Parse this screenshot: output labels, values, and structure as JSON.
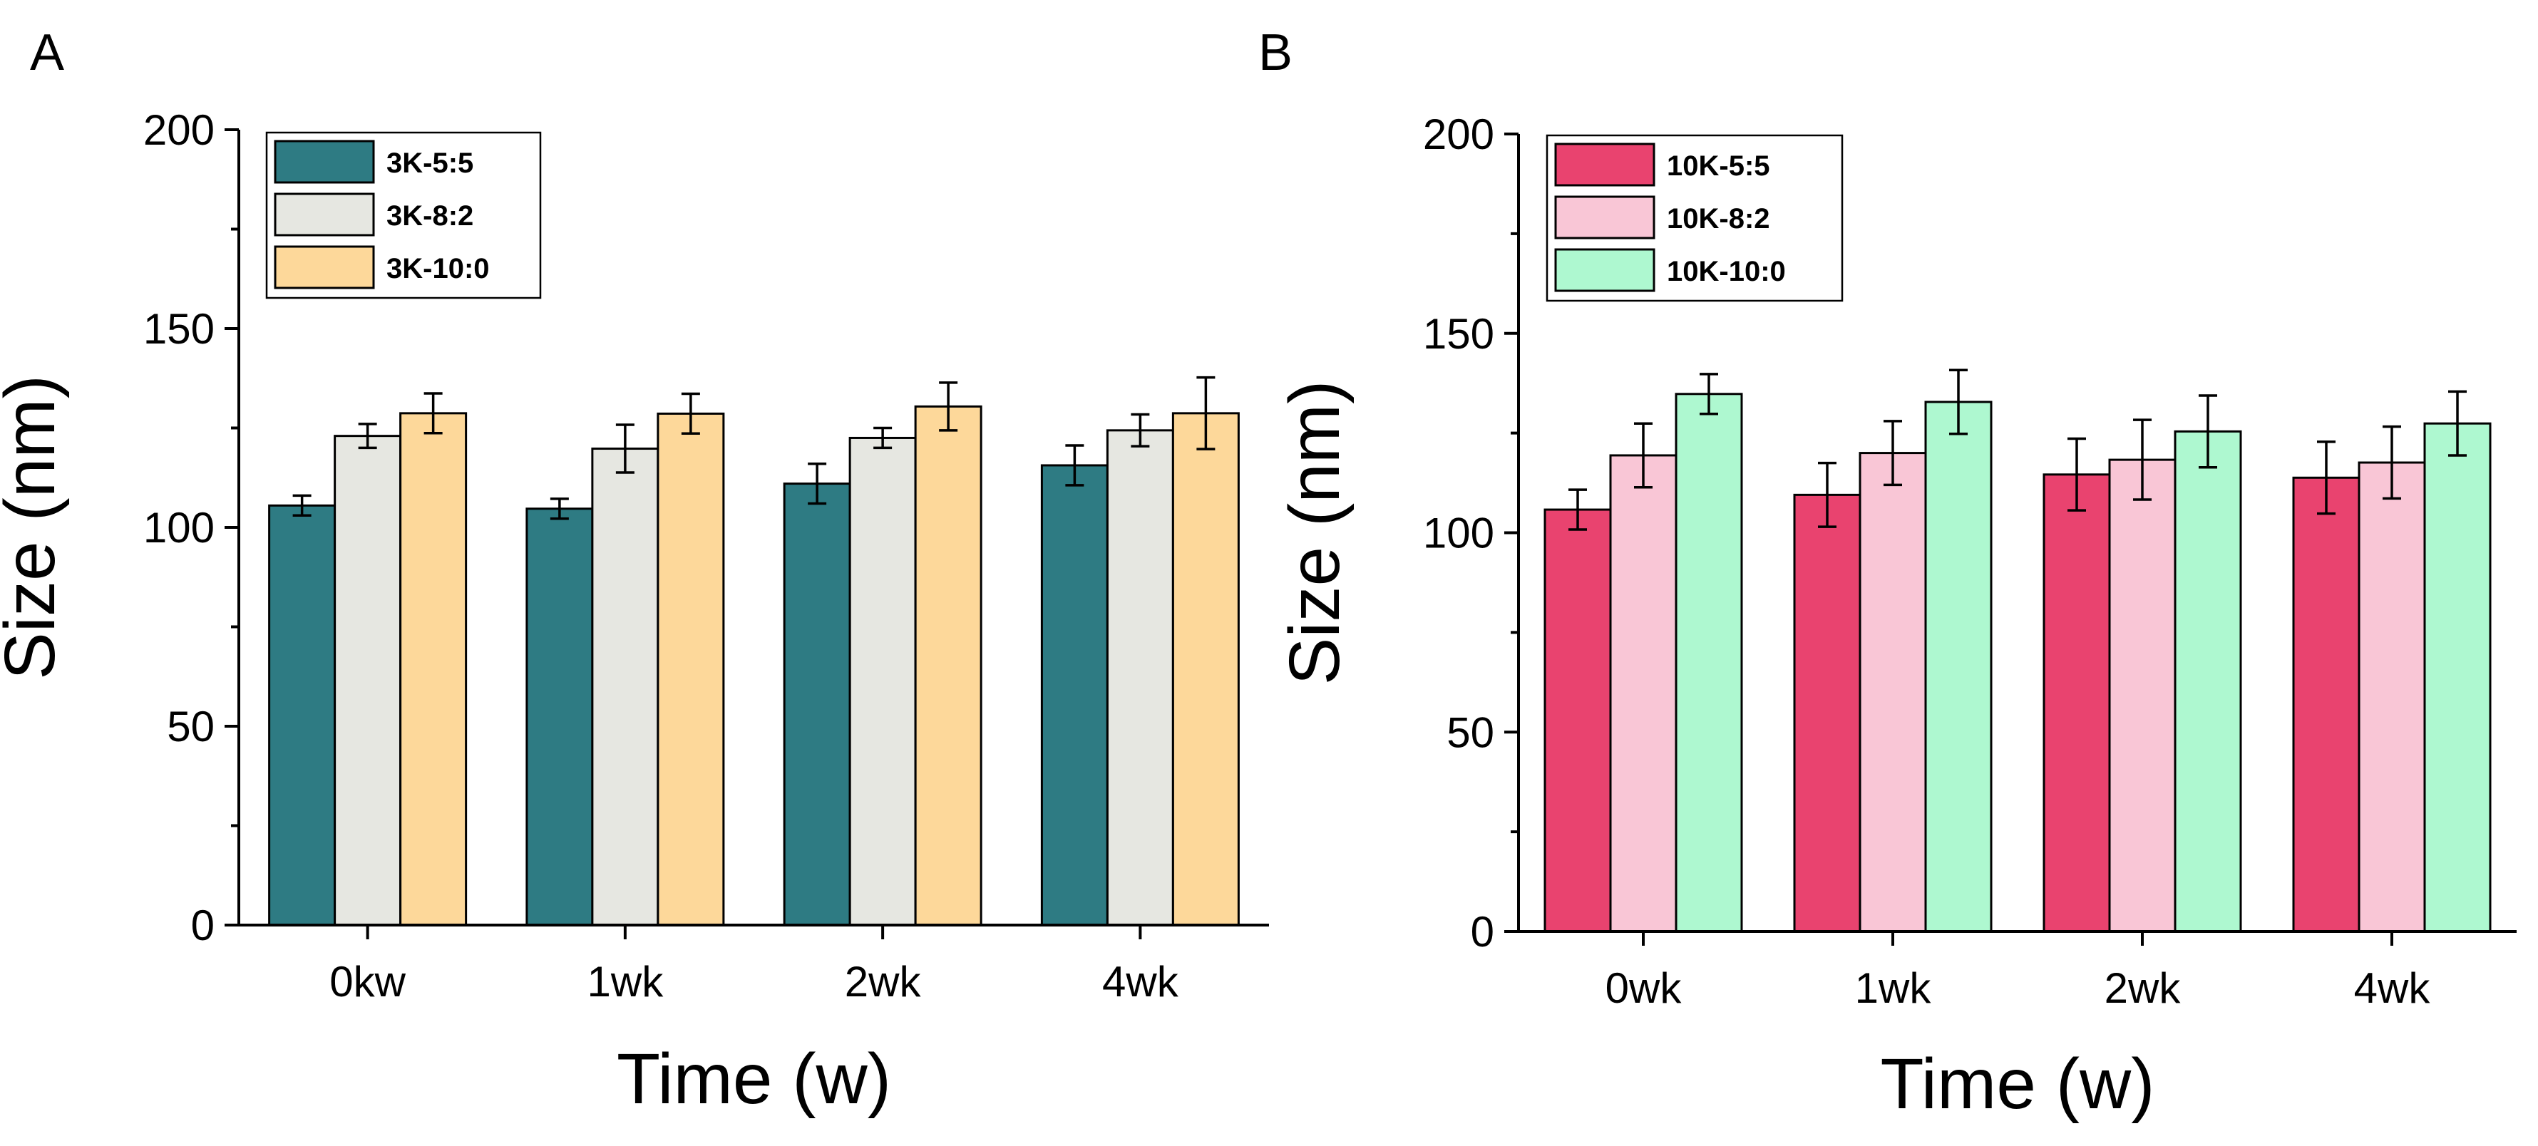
{
  "chart_data": [
    {
      "type": "bar",
      "panel_label": "A",
      "categories": [
        "0kw",
        "1wk",
        "2wk",
        "4wk"
      ],
      "xlabel": "Time (w)",
      "ylabel": "Size (nm)",
      "ylim": [
        0,
        200
      ],
      "yticks": [
        0,
        50,
        100,
        150,
        200
      ],
      "legend_position": "top-left",
      "series": [
        {
          "name": "3K-5:5",
          "color": "#2e7b83",
          "values": [
            105.5,
            104.7,
            111,
            115.6
          ],
          "errors": [
            2.5,
            2.5,
            5,
            5
          ]
        },
        {
          "name": "3K-8:2",
          "color": "#e6e7e1",
          "values": [
            123,
            119.8,
            122.5,
            124.4
          ],
          "errors": [
            3,
            6,
            2.5,
            4
          ]
        },
        {
          "name": "3K-10:0",
          "color": "#fdd89a",
          "values": [
            128.7,
            128.6,
            130.4,
            128.7
          ],
          "errors": [
            5,
            5,
            6,
            9
          ]
        }
      ]
    },
    {
      "type": "bar",
      "panel_label": "B",
      "categories": [
        "0wk",
        "1wk",
        "2wk",
        "4wk"
      ],
      "xlabel": "Time (w)",
      "ylabel": "Size (nm)",
      "ylim": [
        0,
        200
      ],
      "yticks": [
        0,
        50,
        100,
        150,
        200
      ],
      "legend_position": "top-left",
      "series": [
        {
          "name": "10K-5:5",
          "color": "#e9436f",
          "values": [
            105.8,
            109.5,
            114.6,
            113.8
          ],
          "errors": [
            5,
            8,
            9,
            9
          ]
        },
        {
          "name": "10K-8:2",
          "color": "#f9c6d6",
          "values": [
            119.4,
            120,
            118.3,
            117.6
          ],
          "errors": [
            8,
            8,
            10,
            9
          ]
        },
        {
          "name": "10K-10:0",
          "color": "#aef8d0",
          "values": [
            134.8,
            132.8,
            125.4,
            127.4
          ],
          "errors": [
            5,
            8,
            9,
            8
          ]
        }
      ]
    }
  ]
}
